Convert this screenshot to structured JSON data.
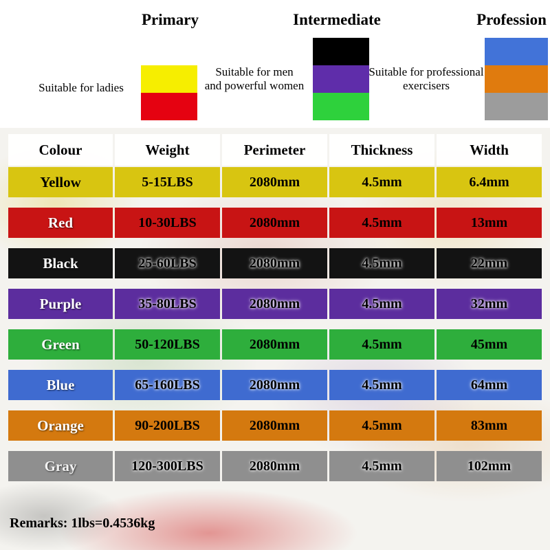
{
  "header": {
    "categories": [
      {
        "title": "Primary",
        "description_lines": [
          "Suitable for ladies"
        ],
        "swatches": [
          "#f6ee00",
          "#e50211"
        ]
      },
      {
        "title": "Intermediate",
        "description_lines": [
          "Suitable for men",
          "and powerful women"
        ],
        "swatches": [
          "#000000",
          "#5f2daa",
          "#2ed13c"
        ]
      },
      {
        "title": "Profession",
        "description_lines": [
          "Suitable for professional",
          "exercisers"
        ],
        "swatches": [
          "#4273d8",
          "#e07b0e",
          "#9c9c9c"
        ]
      }
    ]
  },
  "chart_data": {
    "type": "table",
    "columns": [
      "Colour",
      "Weight",
      "Perimeter",
      "Thickness",
      "Width"
    ],
    "rows": [
      [
        "Yellow",
        "5-15LBS",
        "2080mm",
        "4.5mm",
        "6.4mm"
      ],
      [
        "Red",
        "10-30LBS",
        "2080mm",
        "4.5mm",
        "13mm"
      ],
      [
        "Black",
        "25-60LBS",
        "2080mm",
        "4.5mm",
        "22mm"
      ],
      [
        "Purple",
        "35-80LBS",
        "2080mm",
        "4.5mm",
        "32mm"
      ],
      [
        "Green",
        "50-120LBS",
        "2080mm",
        "4.5mm",
        "45mm"
      ],
      [
        "Blue",
        "65-160LBS",
        "2080mm",
        "4.5mm",
        "64mm"
      ],
      [
        "Orange",
        "90-200LBS",
        "2080mm",
        "4.5mm",
        "83mm"
      ],
      [
        "Gray",
        "120-300LBS",
        "2080mm",
        "4.5mm",
        "102mm"
      ]
    ],
    "row_colors": [
      "#d8c511",
      "#c81414",
      "#131313",
      "#5c2d9e",
      "#2eae3c",
      "#3f6bd0",
      "#d4790f",
      "#8f8f8f"
    ],
    "label_text_colors": [
      "#000000",
      "#ffffff",
      "#ffffff",
      "#ffffff",
      "#ffffff",
      "#ffffff",
      "#ffffff",
      "#f2f2f2"
    ],
    "dark_rows": [
      false,
      false,
      true,
      true,
      false,
      true,
      false,
      true
    ]
  },
  "remarks": "Remarks: 1lbs=0.4536kg"
}
